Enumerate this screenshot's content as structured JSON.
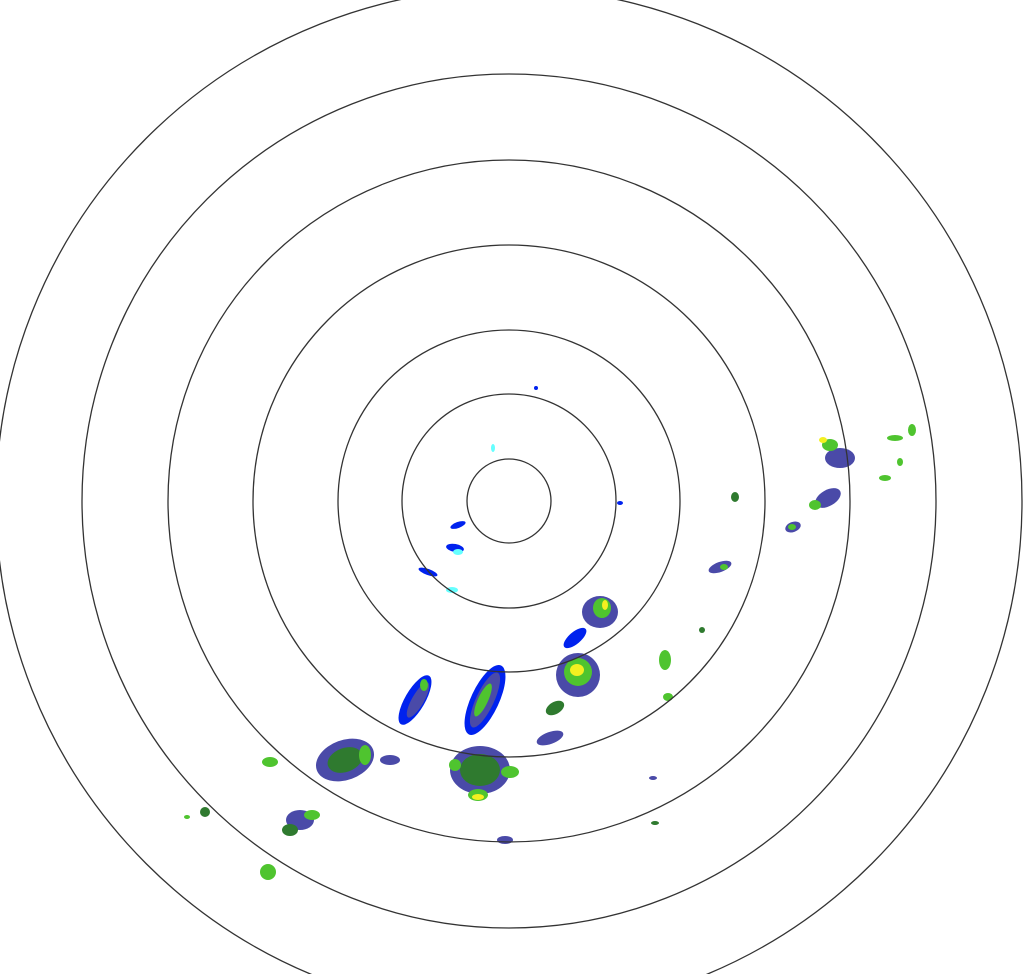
{
  "radar": {
    "range_ring_count": 7,
    "colors": {
      "ring": "#333333",
      "background": "#ffffff",
      "very_light": "#66ffff",
      "light": "#0022ee",
      "light_moderate": "#4a4aa8",
      "moderate_dark": "#2f7a2f",
      "moderate": "#4fc42f",
      "heavy": "#f4f020",
      "very_heavy": "#e03020"
    }
  }
}
